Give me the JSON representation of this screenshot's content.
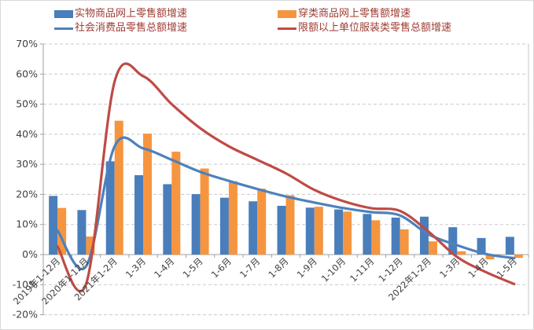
{
  "chart_data": {
    "type": "combo-bar-line",
    "title": "",
    "categories": [
      "2019年1-12月",
      "2020年1-12月",
      "2021年1-2月",
      "1-3月",
      "1-4月",
      "1-5月",
      "1-6月",
      "1-7月",
      "1-8月",
      "1-9月",
      "1-10月",
      "1-11月",
      "1-12月",
      "2022年1-2月",
      "1-3月",
      "1-4月",
      "1-5月"
    ],
    "series": [
      {
        "name": "实物商品网上零售额增速",
        "kind": "bar",
        "color": "#4a7ebb",
        "values": [
          19.5,
          14.8,
          31.0,
          26.4,
          23.4,
          20.1,
          18.9,
          17.7,
          16.2,
          15.6,
          15.0,
          13.5,
          12.3,
          12.6,
          9.1,
          5.5,
          5.9
        ]
      },
      {
        "name": "穿类商品网上零售额增速",
        "kind": "bar",
        "color": "#f6953f",
        "values": [
          15.5,
          6.0,
          44.5,
          40.2,
          34.2,
          28.6,
          24.4,
          21.9,
          19.7,
          15.9,
          14.3,
          11.4,
          8.4,
          4.4,
          1.1,
          -1.6,
          -1.1
        ]
      },
      {
        "name": "社会消费品零售总额增速",
        "kind": "line",
        "color": "#4e81bd",
        "values": [
          8.0,
          -3.9,
          36.0,
          35.3,
          31.5,
          27.5,
          24.5,
          21.8,
          19.3,
          17.3,
          15.5,
          14.1,
          13.0,
          6.7,
          3.1,
          0.2,
          -1.2
        ]
      },
      {
        "name": "限额以上单位服装类零售总额增速",
        "kind": "line",
        "color": "#bf4b45",
        "values": [
          2.7,
          -9.8,
          57.5,
          59.3,
          50.0,
          42.0,
          36.0,
          31.5,
          27.0,
          21.5,
          17.8,
          15.4,
          14.5,
          7.6,
          -0.8,
          -5.8,
          -9.8
        ]
      }
    ],
    "xlabel": "",
    "ylabel": "",
    "ylim": [
      -20,
      70
    ],
    "y_tick_step": 10,
    "y_tick_labels": [
      "70%",
      "60%",
      "50%",
      "40%",
      "30%",
      "20%",
      "10%",
      "0%",
      "-10%",
      "-20%"
    ],
    "grid": "horizontal-dashed",
    "legend_position": "top",
    "x_label_rotation_deg": 45
  },
  "colors": {
    "bar_blue": "#4a7ebb",
    "bar_orange": "#f6953f",
    "line_blue": "#4e81bd",
    "line_red": "#bf4b45",
    "grid": "#c9c9c9",
    "axis": "#9f9f9f",
    "axis_text": "#3f3f3f",
    "legend_text": "#9e3b32",
    "background": "#ffffff",
    "border": "#d9d9d9"
  }
}
